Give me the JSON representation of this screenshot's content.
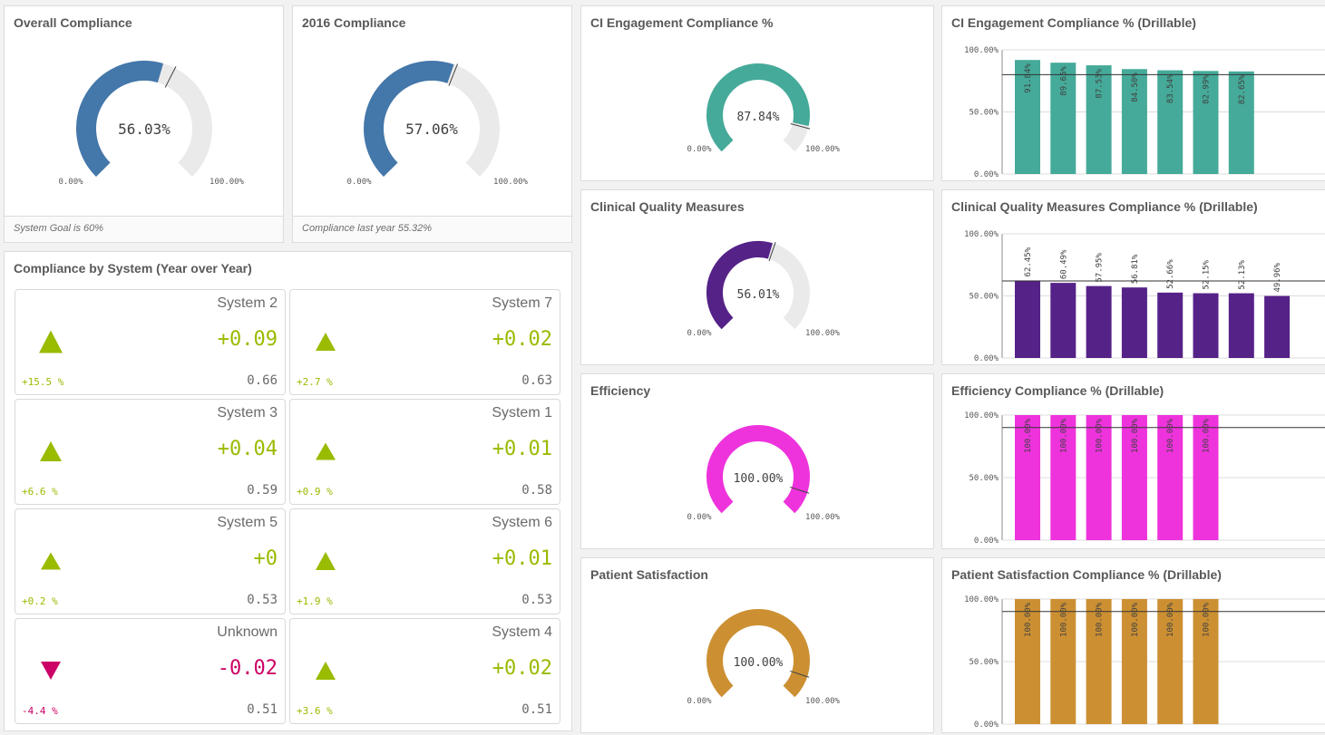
{
  "colors": {
    "blue": "#4477aa",
    "teal": "#45aa99",
    "purple": "#552288",
    "magenta": "#ee33dd",
    "gold": "#cc9033",
    "track": "#eaeaea",
    "positive": "#99bb00",
    "negative": "#cc0066"
  },
  "overall": {
    "title": "Overall Compliance",
    "value": "56.03%",
    "fraction": 0.5603,
    "min": "0.00%",
    "max": "100.00%",
    "goal_marker": 0.6,
    "footer": "System Goal is 60%"
  },
  "y2016": {
    "title": "2016 Compliance",
    "value": "57.06%",
    "fraction": 0.5706,
    "min": "0.00%",
    "max": "100.00%",
    "footer": "Compliance last year 55.32%"
  },
  "yoy": {
    "title": "Compliance by System (Year over Year)",
    "items": [
      {
        "name": "System 2",
        "delta": "+0.09",
        "pct": "+15.5 %",
        "current": "0.66",
        "direction": "up",
        "strength": 1.0
      },
      {
        "name": "System 7",
        "delta": "+0.02",
        "pct": "+2.7 %",
        "current": "0.63",
        "direction": "up",
        "strength": 0.6
      },
      {
        "name": "System 3",
        "delta": "+0.04",
        "pct": "+6.6 %",
        "current": "0.59",
        "direction": "up",
        "strength": 0.75
      },
      {
        "name": "System 1",
        "delta": "+0.01",
        "pct": "+0.9 %",
        "current": "0.58",
        "direction": "up",
        "strength": 0.55
      },
      {
        "name": "System 5",
        "delta": "+0",
        "pct": "+0.2 %",
        "current": "0.53",
        "direction": "up",
        "strength": 0.5
      },
      {
        "name": "System 6",
        "delta": "+0.01",
        "pct": "+1.9 %",
        "current": "0.53",
        "direction": "up",
        "strength": 0.6
      },
      {
        "name": "Unknown",
        "delta": "-0.02",
        "pct": "-4.4 %",
        "current": "0.51",
        "direction": "down",
        "strength": 0.65
      },
      {
        "name": "System 4",
        "delta": "+0.02",
        "pct": "+3.6 %",
        "current": "0.51",
        "direction": "up",
        "strength": 0.65
      }
    ]
  },
  "ci_gauge": {
    "title": "CI Engagement Compliance %",
    "value": "87.84%",
    "fraction": 0.8784,
    "min": "0.00%",
    "max": "100.00%"
  },
  "cqm_gauge": {
    "title": "Clinical Quality Measures",
    "value": "56.01%",
    "fraction": 0.5601,
    "min": "0.00%",
    "max": "100.00%"
  },
  "eff_gauge": {
    "title": "Efficiency",
    "value": "100.00%",
    "fraction": 1.0,
    "min": "0.00%",
    "max": "100.00%"
  },
  "ps_gauge": {
    "title": "Patient Satisfaction",
    "value": "100.00%",
    "fraction": 1.0,
    "min": "0.00%",
    "max": "100.00%"
  },
  "chart_data": [
    {
      "type": "bar",
      "title": "CI Engagement Compliance % (Drillable)",
      "values": [
        91.84,
        89.65,
        87.53,
        84.5,
        83.54,
        82.99,
        82.65
      ],
      "labels": [
        "91.84%",
        "89.65%",
        "87.53%",
        "84.50%",
        "83.54%",
        "82.99%",
        "82.65%"
      ],
      "yticks": [
        "100.00%",
        "50.00%",
        "0.00%"
      ],
      "ylim": [
        0,
        100
      ],
      "reference_line": 80,
      "color": "#45aa99"
    },
    {
      "type": "bar",
      "title": "Clinical Quality Measures Compliance % (Drillable)",
      "values": [
        62.45,
        60.49,
        57.95,
        56.81,
        52.66,
        52.15,
        52.13,
        49.96
      ],
      "labels": [
        "62.45%",
        "60.49%",
        "57.95%",
        "56.81%",
        "52.66%",
        "52.15%",
        "52.13%",
        "49.96%"
      ],
      "yticks": [
        "100.00%",
        "50.00%",
        "0.00%"
      ],
      "ylim": [
        0,
        100
      ],
      "reference_line": 62,
      "color": "#552288"
    },
    {
      "type": "bar",
      "title": "Efficiency Compliance % (Drillable)",
      "values": [
        100,
        100,
        100,
        100,
        100,
        100
      ],
      "labels": [
        "100.00%",
        "100.00%",
        "100.00%",
        "100.00%",
        "100.00%",
        "100.00%"
      ],
      "yticks": [
        "100.00%",
        "50.00%",
        "0.00%"
      ],
      "ylim": [
        0,
        100
      ],
      "reference_line": 90,
      "color": "#ee33dd"
    },
    {
      "type": "bar",
      "title": "Patient Satisfaction Compliance % (Drillable)",
      "values": [
        100,
        100,
        100,
        100,
        100,
        100
      ],
      "labels": [
        "100.00%",
        "100.00%",
        "100.00%",
        "100.00%",
        "100.00%",
        "100.00%"
      ],
      "yticks": [
        "100.00%",
        "50.00%",
        "0.00%"
      ],
      "ylim": [
        0,
        100
      ],
      "reference_line": 90,
      "color": "#cc9033"
    }
  ]
}
